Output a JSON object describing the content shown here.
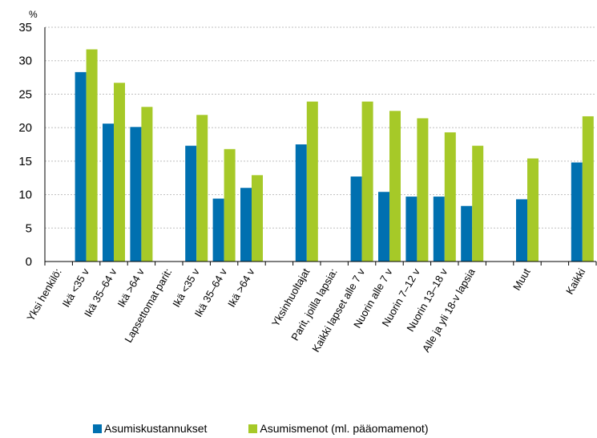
{
  "chart_data": {
    "type": "bar",
    "unit_label": "%",
    "ylim": [
      0,
      35
    ],
    "yticks": [
      "0",
      "5",
      "10",
      "15",
      "20",
      "25",
      "30",
      "35"
    ],
    "grid": true,
    "legend_position": "bottom",
    "categories": [
      "Yksi henkilö:",
      "Ikä <35 v",
      "Ikä 35–64  v",
      "Ikä >64 v",
      "Lapsettomat parit:",
      "Ikä <35 v",
      "Ikä 35–64 v",
      "Ikä >64 v",
      "",
      "Yksinhuoltajat",
      "Parit, joilla lapsia:",
      "Kaikki lapset alle 7 v",
      "Nuorin alle 7 v",
      "Nuorin 7–12 v",
      "Nuorin 13–18 v",
      "Alle ja yli 18-v lapsia",
      "",
      "Muut",
      "",
      "Kaikki"
    ],
    "series": [
      {
        "name": "Asumiskustannukset",
        "color": "#0070b0",
        "values": [
          null,
          28.3,
          20.6,
          20.1,
          null,
          17.3,
          9.4,
          11.0,
          null,
          17.5,
          null,
          12.7,
          10.4,
          9.7,
          9.7,
          8.3,
          null,
          9.3,
          null,
          14.8
        ]
      },
      {
        "name": "Asumismenot (ml. pääomamenot)",
        "color": "#a6c928",
        "values": [
          null,
          31.7,
          26.7,
          23.1,
          null,
          21.9,
          16.8,
          12.9,
          null,
          23.9,
          null,
          23.9,
          22.5,
          21.4,
          19.3,
          17.3,
          null,
          15.4,
          null,
          21.7
        ]
      }
    ]
  }
}
